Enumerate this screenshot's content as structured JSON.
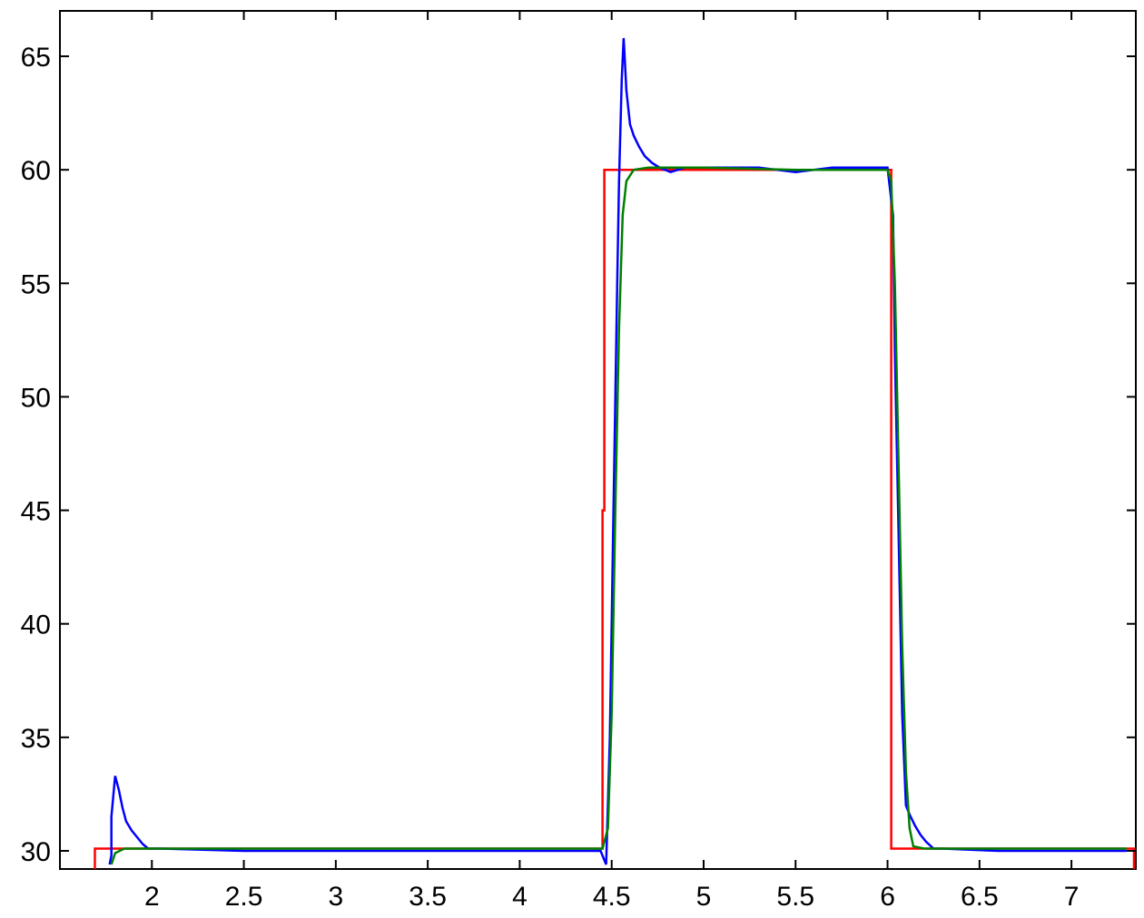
{
  "chart_data": {
    "type": "line",
    "xlim": [
      1.5,
      7.35
    ],
    "ylim": [
      29.2,
      67
    ],
    "xticks": [
      2,
      2.5,
      3,
      3.5,
      4,
      4.5,
      5,
      5.5,
      6,
      6.5,
      7
    ],
    "xtick_labels": [
      "2",
      "2.5",
      "3",
      "3.5",
      "4",
      "4.5",
      "5",
      "5.5",
      "6",
      "6.5",
      "7"
    ],
    "yticks": [
      30,
      35,
      40,
      45,
      50,
      55,
      60,
      65
    ],
    "ytick_labels": [
      "30",
      "35",
      "40",
      "45",
      "50",
      "55",
      "60",
      "65"
    ],
    "grid": false,
    "title": "",
    "xlabel": "",
    "ylabel": "",
    "series": [
      {
        "color": "#ff0000",
        "points": [
          [
            1.69,
            29.2
          ],
          [
            1.69,
            30.1
          ],
          [
            4.45,
            30.1
          ],
          [
            4.45,
            45.0
          ],
          [
            4.46,
            45.0
          ],
          [
            4.46,
            60.0
          ],
          [
            6.02,
            60.0
          ],
          [
            6.02,
            30.1
          ],
          [
            7.34,
            30.1
          ],
          [
            7.34,
            29.2
          ]
        ]
      },
      {
        "color": "#0000ff",
        "points": [
          [
            1.77,
            29.4
          ],
          [
            1.78,
            29.8
          ],
          [
            1.78,
            31.5
          ],
          [
            1.8,
            33.3
          ],
          [
            1.82,
            32.7
          ],
          [
            1.84,
            31.9
          ],
          [
            1.86,
            31.3
          ],
          [
            1.89,
            30.9
          ],
          [
            1.92,
            30.6
          ],
          [
            1.95,
            30.3
          ],
          [
            1.98,
            30.1
          ],
          [
            2.05,
            30.1
          ],
          [
            2.5,
            30.0
          ],
          [
            3.0,
            30.0
          ],
          [
            3.5,
            30.0
          ],
          [
            4.0,
            30.0
          ],
          [
            4.44,
            30.0
          ],
          [
            4.47,
            29.4
          ],
          [
            4.49,
            35.0
          ],
          [
            4.51,
            45.0
          ],
          [
            4.53,
            55.0
          ],
          [
            4.54,
            59.5
          ],
          [
            4.555,
            64.0
          ],
          [
            4.565,
            65.8
          ],
          [
            4.58,
            63.5
          ],
          [
            4.6,
            62.0
          ],
          [
            4.62,
            61.5
          ],
          [
            4.65,
            61.0
          ],
          [
            4.68,
            60.6
          ],
          [
            4.72,
            60.3
          ],
          [
            4.76,
            60.1
          ],
          [
            4.82,
            59.9
          ],
          [
            4.9,
            60.1
          ],
          [
            5.0,
            60.1
          ],
          [
            5.3,
            60.1
          ],
          [
            5.5,
            59.9
          ],
          [
            5.7,
            60.1
          ],
          [
            6.0,
            60.1
          ],
          [
            6.03,
            58.0
          ],
          [
            6.04,
            52.0
          ],
          [
            6.06,
            44.0
          ],
          [
            6.08,
            36.0
          ],
          [
            6.1,
            32.0
          ],
          [
            6.12,
            31.6
          ],
          [
            6.15,
            31.1
          ],
          [
            6.18,
            30.7
          ],
          [
            6.21,
            30.4
          ],
          [
            6.25,
            30.1
          ],
          [
            6.3,
            30.1
          ],
          [
            6.6,
            30.0
          ],
          [
            7.0,
            30.0
          ],
          [
            7.3,
            30.0
          ]
        ]
      },
      {
        "color": "#008000",
        "points": [
          [
            1.78,
            29.4
          ],
          [
            1.8,
            29.9
          ],
          [
            1.85,
            30.1
          ],
          [
            2.5,
            30.1
          ],
          [
            3.0,
            30.1
          ],
          [
            3.5,
            30.1
          ],
          [
            4.0,
            30.1
          ],
          [
            4.45,
            30.1
          ],
          [
            4.48,
            31.0
          ],
          [
            4.5,
            36.0
          ],
          [
            4.52,
            45.0
          ],
          [
            4.54,
            53.0
          ],
          [
            4.56,
            58.0
          ],
          [
            4.58,
            59.5
          ],
          [
            4.62,
            60.0
          ],
          [
            4.7,
            60.1
          ],
          [
            5.0,
            60.1
          ],
          [
            5.5,
            60.0
          ],
          [
            6.0,
            60.0
          ],
          [
            6.02,
            59.5
          ],
          [
            6.04,
            55.0
          ],
          [
            6.06,
            47.0
          ],
          [
            6.08,
            39.0
          ],
          [
            6.1,
            33.5
          ],
          [
            6.12,
            31.0
          ],
          [
            6.14,
            30.2
          ],
          [
            6.2,
            30.1
          ],
          [
            7.3,
            30.1
          ]
        ]
      }
    ]
  }
}
